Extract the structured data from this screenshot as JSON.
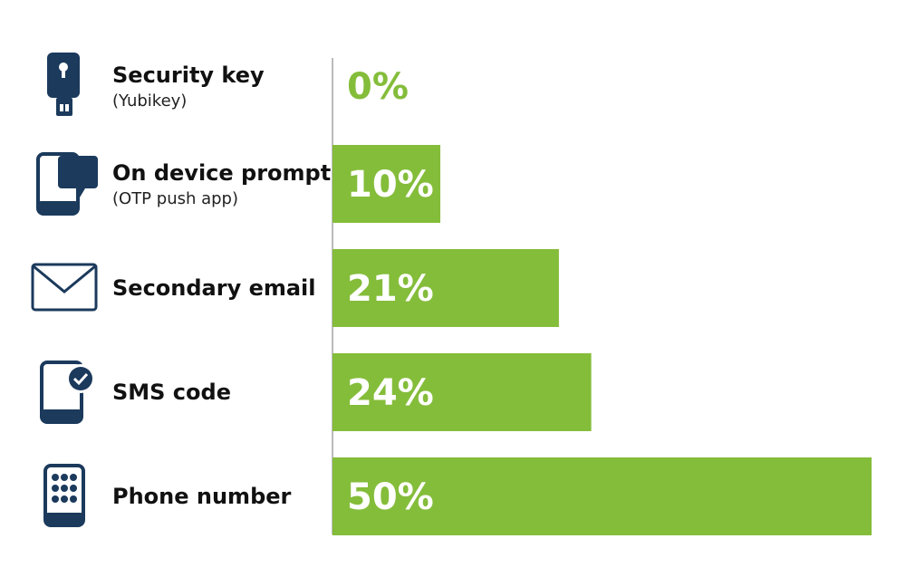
{
  "chart_data": {
    "type": "bar",
    "orientation": "horizontal",
    "categories": [
      "Security key",
      "On device prompt",
      "Secondary email",
      "SMS code",
      "Phone number"
    ],
    "sublabels": [
      "(Yubikey)",
      "(OTP push app)",
      "",
      "",
      ""
    ],
    "values": [
      0,
      10,
      21,
      24,
      50
    ],
    "value_labels": [
      "0%",
      "10%",
      "21%",
      "24%",
      "50%"
    ],
    "icons": [
      "security-key-icon",
      "chat-phone-icon",
      "envelope-icon",
      "phone-check-icon",
      "keypad-phone-icon"
    ],
    "xlim": [
      0,
      50
    ],
    "grid": false,
    "title": "",
    "xlabel": "",
    "ylabel": ""
  },
  "colors": {
    "bar": "#84bd3a",
    "icon": "#1b3a5c",
    "axis": "#bbbbbb",
    "value_on_bar": "#ffffff",
    "value_off_bar": "#84bd3a"
  }
}
